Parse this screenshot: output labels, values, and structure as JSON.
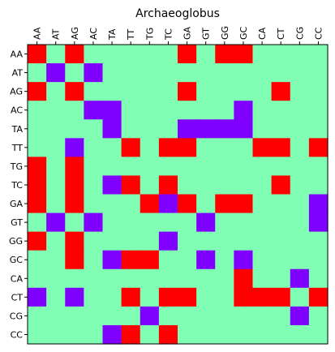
{
  "chart_data": {
    "type": "heatmap",
    "title": "Archaeoglobus",
    "x_labels": [
      "AA",
      "AT",
      "AG",
      "AC",
      "TA",
      "TT",
      "TG",
      "TC",
      "GA",
      "GT",
      "GG",
      "GC",
      "CA",
      "CT",
      "CG",
      "CC"
    ],
    "y_labels": [
      "AA",
      "AT",
      "AG",
      "AC",
      "TA",
      "TT",
      "TG",
      "TC",
      "GA",
      "GT",
      "GG",
      "GC",
      "CA",
      "CT",
      "CG",
      "CC"
    ],
    "legend": "none",
    "grid": false,
    "colors": {
      "0": "#80ffb4",
      "1": "#ff0000",
      "2": "#8000ff",
      "frame": "#000000"
    },
    "matrix": [
      [
        1,
        0,
        1,
        0,
        0,
        0,
        0,
        0,
        1,
        0,
        1,
        1,
        0,
        0,
        0,
        0
      ],
      [
        0,
        2,
        0,
        2,
        0,
        0,
        0,
        0,
        0,
        0,
        0,
        0,
        0,
        0,
        0,
        0
      ],
      [
        1,
        0,
        1,
        0,
        0,
        0,
        0,
        0,
        1,
        0,
        0,
        0,
        0,
        1,
        0,
        0
      ],
      [
        0,
        0,
        0,
        2,
        2,
        0,
        0,
        0,
        0,
        0,
        0,
        2,
        0,
        0,
        0,
        0
      ],
      [
        0,
        0,
        0,
        0,
        2,
        0,
        0,
        0,
        2,
        2,
        2,
        2,
        0,
        0,
        0,
        0
      ],
      [
        0,
        0,
        2,
        0,
        0,
        1,
        0,
        1,
        1,
        0,
        0,
        0,
        1,
        1,
        0,
        1
      ],
      [
        1,
        0,
        1,
        0,
        0,
        0,
        0,
        0,
        0,
        0,
        0,
        0,
        0,
        0,
        0,
        0
      ],
      [
        1,
        0,
        1,
        0,
        2,
        1,
        0,
        1,
        0,
        0,
        0,
        0,
        0,
        1,
        0,
        0
      ],
      [
        1,
        0,
        1,
        0,
        0,
        0,
        1,
        2,
        1,
        0,
        1,
        1,
        0,
        0,
        0,
        2
      ],
      [
        0,
        2,
        0,
        2,
        0,
        0,
        0,
        0,
        0,
        2,
        0,
        0,
        0,
        0,
        0,
        2
      ],
      [
        1,
        0,
        1,
        0,
        0,
        0,
        0,
        2,
        0,
        0,
        0,
        0,
        0,
        0,
        0,
        0
      ],
      [
        0,
        0,
        1,
        0,
        2,
        1,
        1,
        0,
        0,
        2,
        0,
        2,
        0,
        0,
        0,
        0
      ],
      [
        0,
        0,
        0,
        0,
        0,
        0,
        0,
        0,
        0,
        0,
        0,
        1,
        0,
        0,
        2,
        0
      ],
      [
        2,
        0,
        2,
        0,
        0,
        1,
        0,
        1,
        1,
        0,
        0,
        1,
        1,
        1,
        0,
        1
      ],
      [
        0,
        0,
        0,
        0,
        0,
        0,
        2,
        0,
        0,
        0,
        0,
        0,
        0,
        0,
        2,
        0
      ],
      [
        0,
        0,
        0,
        0,
        2,
        1,
        0,
        1,
        0,
        0,
        0,
        0,
        0,
        0,
        0,
        0
      ]
    ]
  }
}
